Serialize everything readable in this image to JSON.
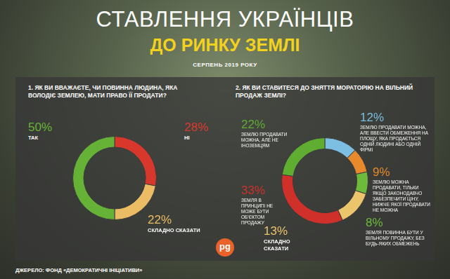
{
  "header": {
    "title": "СТАВЛЕННЯ УКРАЇНЦІВ",
    "subtitle": "ДО РИНКУ ЗЕМЛІ",
    "date": "СЕРПЕНЬ 2019 РОКУ"
  },
  "source": "ДЖЕРЕЛО: ФОНД «ДЕМОКРАТИЧНІ ІНІЦІАТИВИ»",
  "logo": "pg",
  "chart_data": [
    {
      "type": "doughnut",
      "title": "1. ЯК ВИ ВВАЖАЄТЕ, ЧИ ПОВИННА ЛЮДИНА, ЯКА ВОЛОДІЄ ЗЕМЛЕЮ, МАТИ ПРАВО ЇЇ ПРОДАТИ?",
      "categories": [
        "НІ",
        "СКЛАДНО СКАЗАТИ",
        "ТАК"
      ],
      "values": [
        28,
        22,
        50
      ],
      "value_labels": [
        "28%",
        "22%",
        "50%"
      ],
      "colors": [
        "#d8382c",
        "#ecbc64",
        "#66b236"
      ],
      "data_labels": true
    },
    {
      "type": "doughnut",
      "title": "2. ЯК ВИ СТАВИТЕСЯ ДО ЗНЯТТЯ МОРАТОРІЮ НА ВІЛЬНИЙ ПРОДАЖ ЗЕМЛІ?",
      "categories": [
        "ЗЕМЛЮ ПРОДАВАТИ МОЖНА, АЛЕ ВВЕСТИ ОБМЕЖЕННЯ НА ПЛОЩУ, ЯКА ПРОДАЄТЬСЯ ОДНІЙ ЛЮДИНІ АБО ОДНІЙ ФІРМІ",
        "ЗЕМЛЮ МОЖНА ПРОДАВАТИ, ТІЛЬКИ ЯКЩО ЗАКОНОДАВЧО ЗАБЕЗПЕЧИТИ ЦІНУ, НИЖЧЕ ЯКОЇ ПРОДАВАТИ НЕ МОЖНА",
        "ЗЕМЛЯ ПОВИННА БУТИ У ВІЛЬНОМУ ПРОДАЖУ, БЕЗ БУДЬ-ЯКИХ ОБМЕЖЕНЬ",
        "СКЛАДНО СКАЗАТИ",
        "ЗЕМЛЯ В ПРИНЦИПІ НЕ МОЖЕ БУТИ ОБ'ЄКТОМ ПРОДАЖУ",
        "ЗЕМЛЮ ПРОДАВАТИ МОЖНА, АЛЕ НЕ ІНОЗЕМЦЯМ"
      ],
      "values": [
        12,
        9,
        8,
        13,
        33,
        22
      ],
      "value_labels": [
        "12%",
        "9%",
        "8%",
        "13%",
        "33%",
        "22%"
      ],
      "colors": [
        "#7cbfe2",
        "#e8892c",
        "#6cbb3a",
        "#ecc46c",
        "#d0302a",
        "#5fae32"
      ],
      "data_labels": true
    }
  ]
}
